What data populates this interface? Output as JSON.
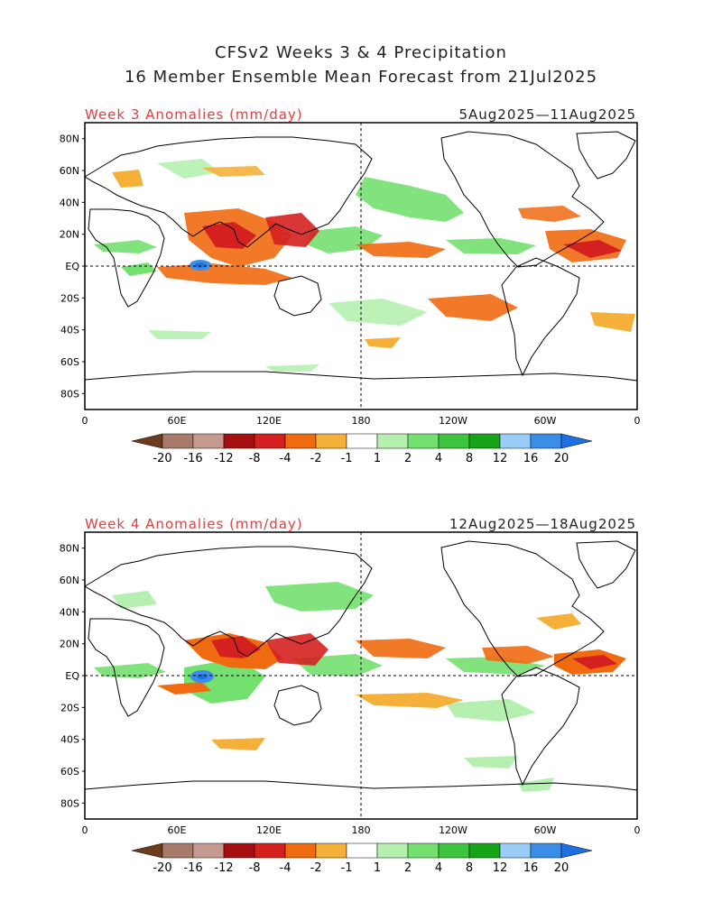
{
  "title": {
    "line1": "CFSv2 Weeks 3 & 4 Precipitation",
    "line2": "16 Member Ensemble Mean Forecast from 21Jul2025"
  },
  "panels": [
    {
      "label": "Week 3 Anomalies (mm/day)",
      "dates": "5Aug2025—11Aug2025"
    },
    {
      "label": "Week 4 Anomalies (mm/day)",
      "dates": "12Aug2025—18Aug2025"
    }
  ],
  "lat_labels": [
    "80N",
    "60N",
    "40N",
    "20N",
    "EQ",
    "20S",
    "40S",
    "60S",
    "80S"
  ],
  "lon_labels": [
    "0",
    "60E",
    "120E",
    "180",
    "120W",
    "60W",
    "0"
  ],
  "colorbar": {
    "labels": [
      "-20",
      "-16",
      "-12",
      "-8",
      "-4",
      "-2",
      "-1",
      "1",
      "2",
      "4",
      "8",
      "12",
      "16",
      "20"
    ],
    "colors": [
      "#6b3a1f",
      "#a87a6a",
      "#c79a8f",
      "#a50f0f",
      "#d52020",
      "#f06a10",
      "#f5b03a",
      "#ffffff",
      "#b5f0b0",
      "#74e070",
      "#3fc43f",
      "#17a317",
      "#9acdf5",
      "#3a8ee8",
      "#1f6fe0"
    ]
  },
  "colors": {
    "title": "#222222",
    "label_red": "#e04040",
    "coast": "#000000"
  }
}
